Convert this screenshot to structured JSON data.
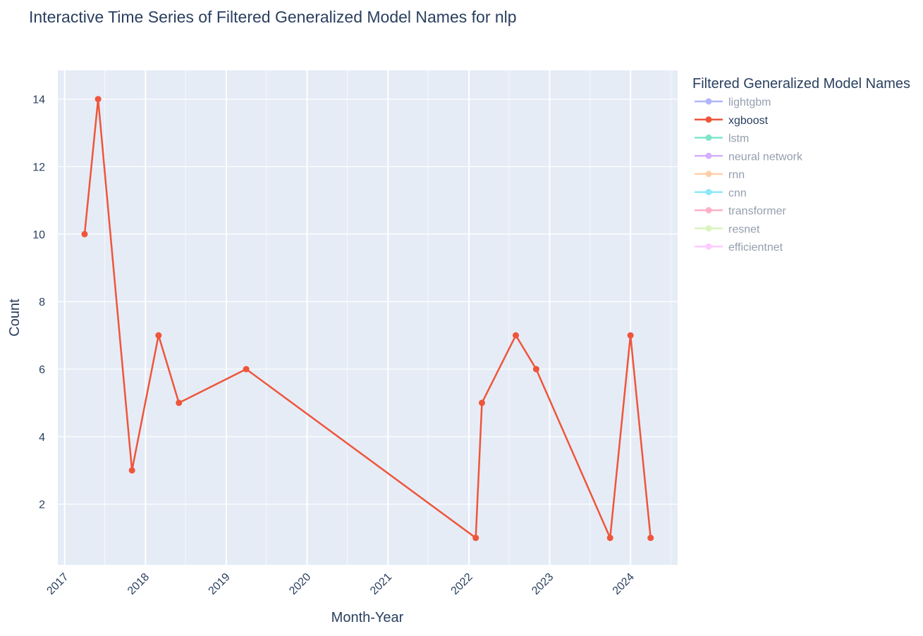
{
  "chart_data": {
    "type": "line",
    "title": "Interactive Time Series of Filtered Generalized Model Names for nlp",
    "xlabel": "Month-Year",
    "ylabel": "Count",
    "x_tick_labels": [
      "2017",
      "2018",
      "2019",
      "2020",
      "2021",
      "2022",
      "2023",
      "2024"
    ],
    "y_ticks": [
      2,
      4,
      6,
      8,
      10,
      12,
      14
    ],
    "xlim": [
      "2016-12-01",
      "2024-08-01"
    ],
    "ylim": [
      0.2,
      14.85
    ],
    "grid": true,
    "legend": {
      "title": "Filtered Generalized Model Names",
      "position": "right"
    },
    "series": [
      {
        "name": "lightgbm",
        "color": "#636efa",
        "visible": false,
        "points": []
      },
      {
        "name": "xgboost",
        "color": "#ef553b",
        "visible": true,
        "points": [
          {
            "x": "2017-04",
            "y": 10
          },
          {
            "x": "2017-06",
            "y": 14
          },
          {
            "x": "2017-11",
            "y": 3
          },
          {
            "x": "2018-03",
            "y": 7
          },
          {
            "x": "2018-06",
            "y": 5
          },
          {
            "x": "2019-04",
            "y": 6
          },
          {
            "x": "2022-02",
            "y": 1
          },
          {
            "x": "2022-03",
            "y": 5
          },
          {
            "x": "2022-08",
            "y": 7
          },
          {
            "x": "2022-11",
            "y": 6
          },
          {
            "x": "2023-10",
            "y": 1
          },
          {
            "x": "2024-01",
            "y": 7
          },
          {
            "x": "2024-04",
            "y": 1
          }
        ]
      },
      {
        "name": "lstm",
        "color": "#00cc96",
        "visible": false,
        "points": []
      },
      {
        "name": "neural network",
        "color": "#ab63fa",
        "visible": false,
        "points": []
      },
      {
        "name": "rnn",
        "color": "#ffa15a",
        "visible": false,
        "points": []
      },
      {
        "name": "cnn",
        "color": "#19d3f3",
        "visible": false,
        "points": []
      },
      {
        "name": "transformer",
        "color": "#ff6692",
        "visible": false,
        "points": []
      },
      {
        "name": "resnet",
        "color": "#b6e880",
        "visible": false,
        "points": []
      },
      {
        "name": "efficientnet",
        "color": "#ff97ff",
        "visible": false,
        "points": []
      }
    ]
  },
  "colors": {
    "plot_bg": "#e5ecf6",
    "grid": "#ffffff",
    "text": "#2a3f5f",
    "axis_text": "#2a3f5f"
  }
}
